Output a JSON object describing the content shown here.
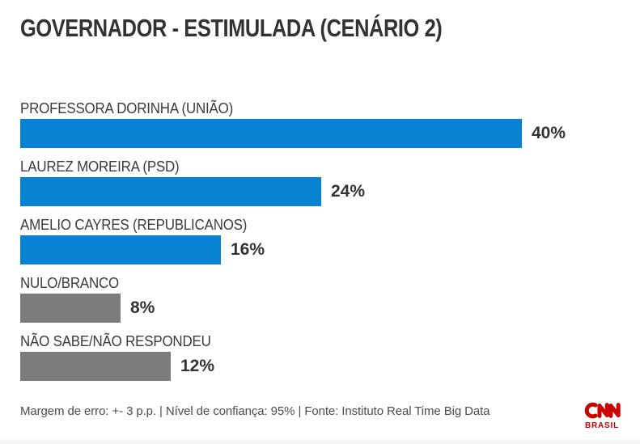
{
  "chart_data": {
    "type": "bar",
    "orientation": "horizontal",
    "title": "GOVERNADOR - ESTIMULADA (CENÁRIO 2)",
    "categories": [
      "PROFESSORA DORINHA (UNIÃO)",
      "LAUREZ MOREIRA (PSD)",
      "AMELIO CAYRES (REPUBLICANOS)",
      "NULO/BRANCO",
      "NÃO SABE/NÃO RESPONDEU"
    ],
    "values": [
      40,
      24,
      16,
      8,
      12
    ],
    "value_labels": [
      "40%",
      "24%",
      "16%",
      "8%",
      "12%"
    ],
    "unit": "%",
    "colors": [
      "#0781d1",
      "#0781d1",
      "#0781d1",
      "#7b7b7b",
      "#7b7b7b"
    ],
    "xlim": [
      0,
      49.4
    ],
    "grid": false,
    "legend": false,
    "value_label_position": "right-of-bar"
  },
  "footer": {
    "text": "Margem de erro: +- 3 p.p. | Nível de confiança: 95% | Fonte: Instituto Real Time Big Data"
  },
  "logo": {
    "brand": "CNN",
    "region": "BRASIL",
    "color": "#cc0000"
  }
}
